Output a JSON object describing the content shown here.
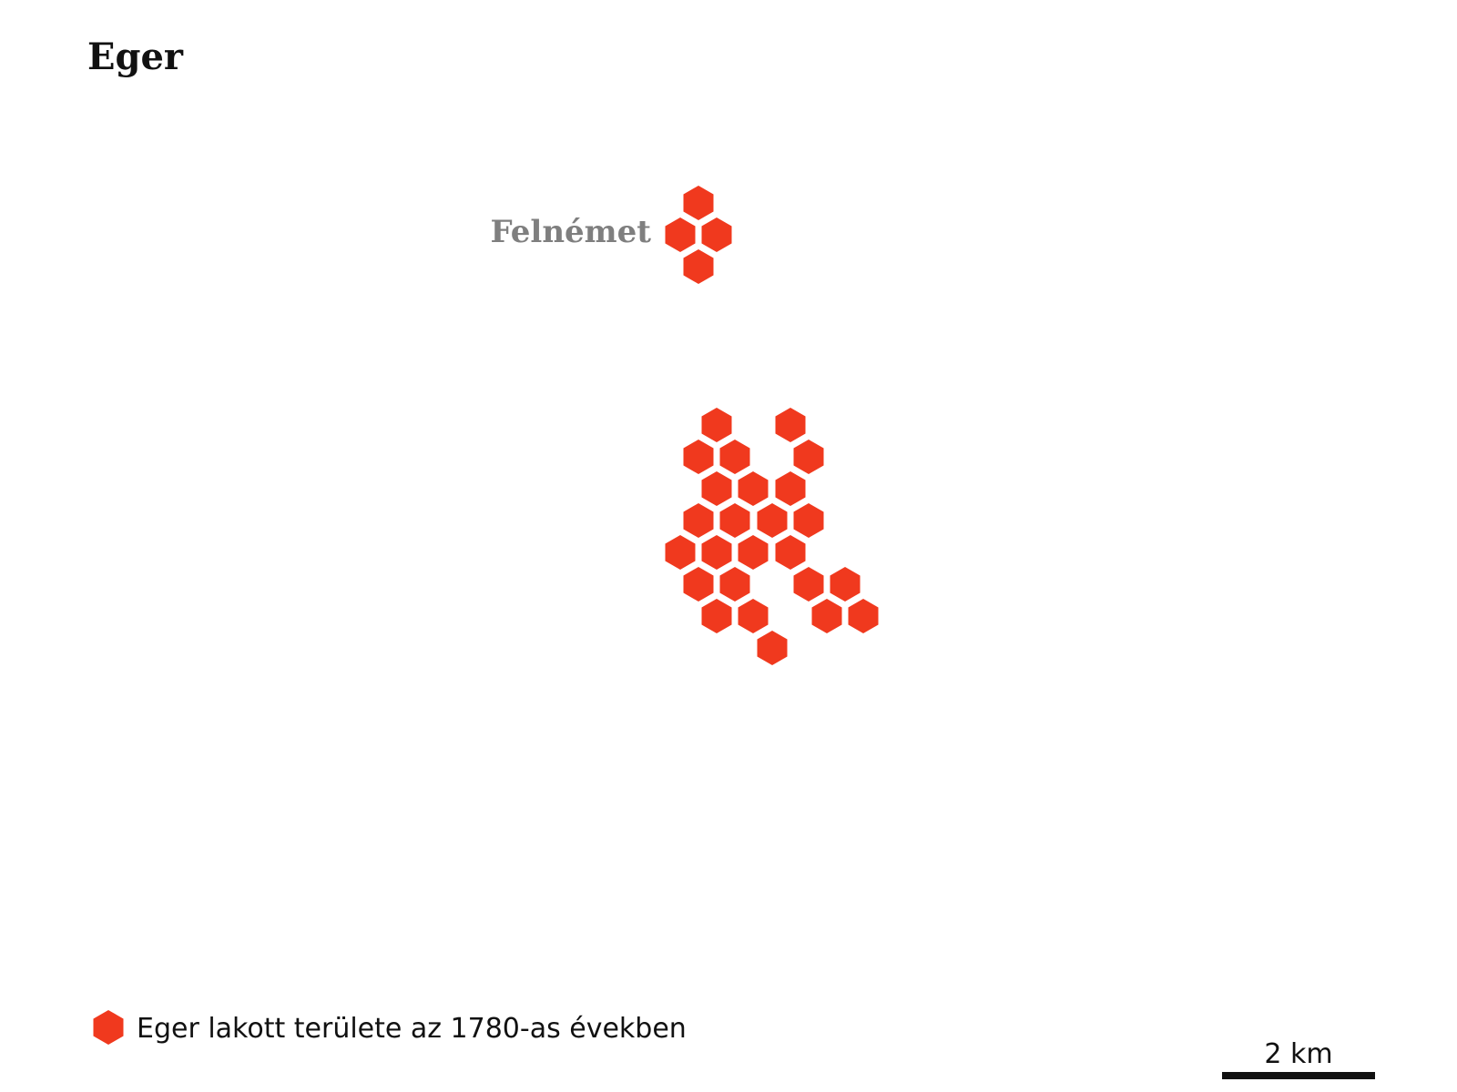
{
  "title": "Eger",
  "colors": {
    "hex_fill": "#f0391e",
    "label_gray": "#7f7f7f",
    "text": "#111111"
  },
  "places": [
    {
      "name": "Felnémet"
    }
  ],
  "legend": {
    "icon": "hexagon-icon",
    "label": "Eger lakott területe az 1780-as években"
  },
  "scale_bar": {
    "label": "2 km",
    "distance_km": 2
  }
}
